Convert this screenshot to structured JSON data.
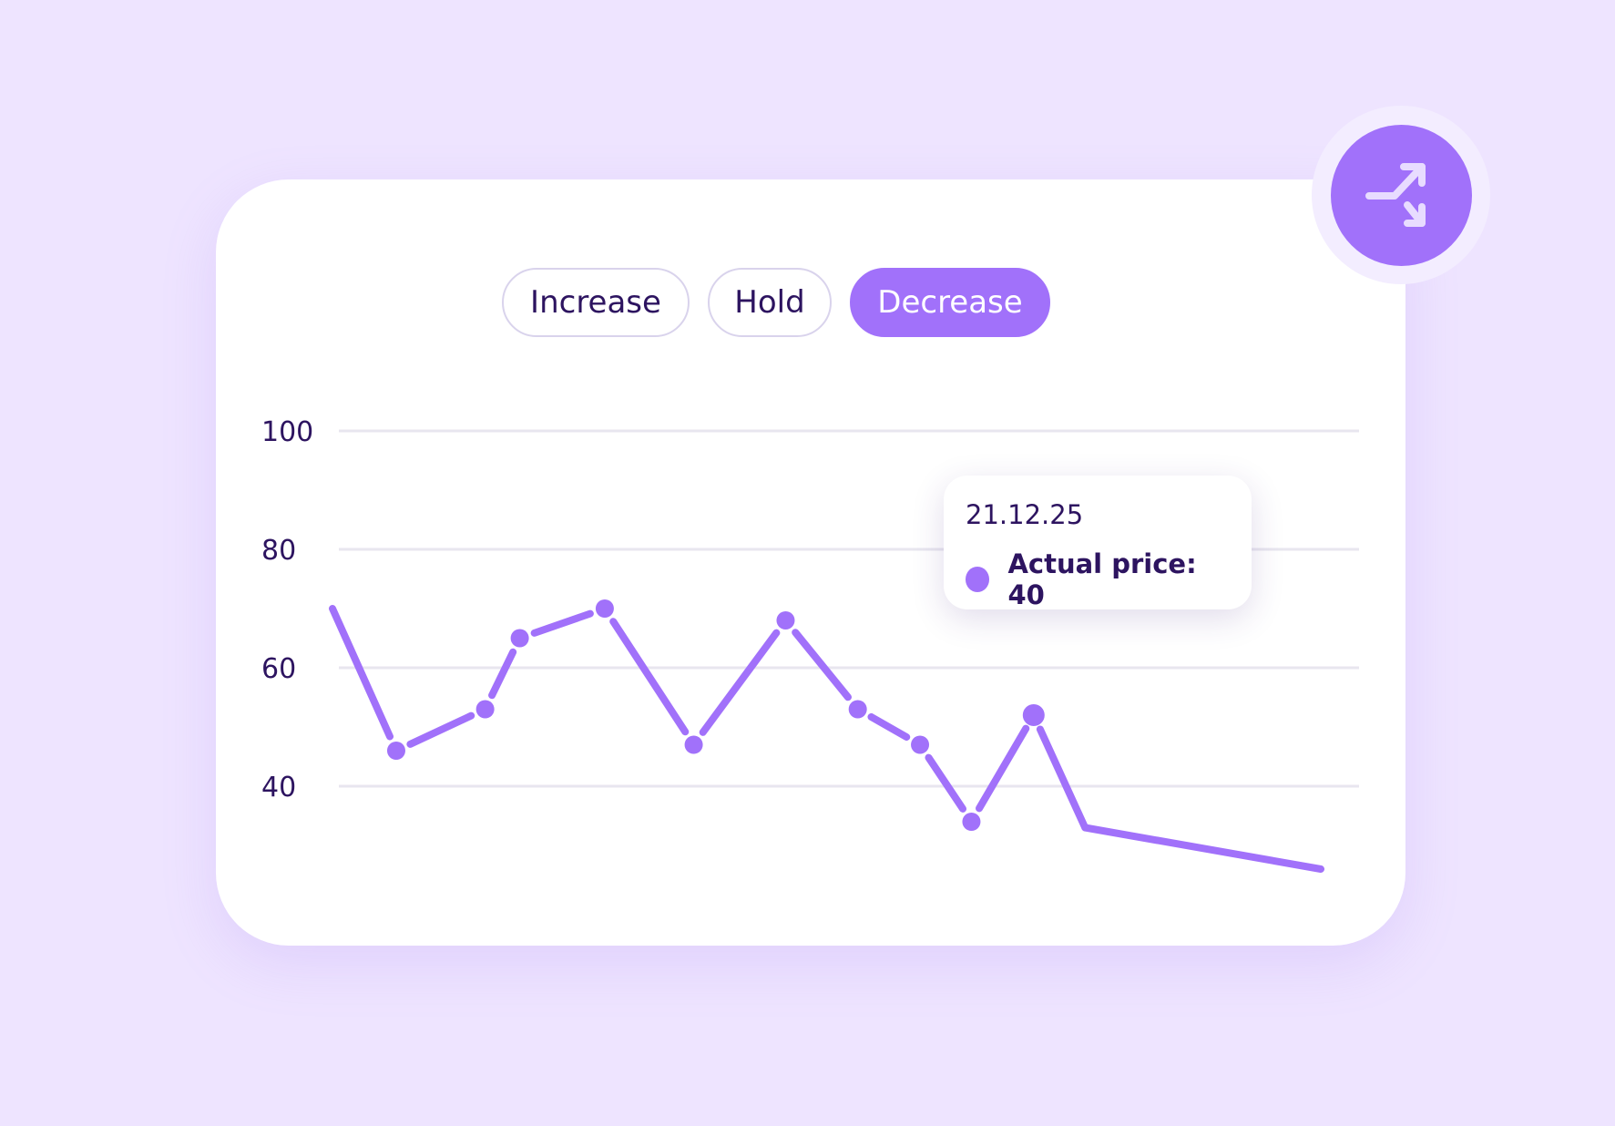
{
  "toggles": [
    {
      "label": "Increase",
      "active": false
    },
    {
      "label": "Hold",
      "active": false
    },
    {
      "label": "Decrease",
      "active": true
    }
  ],
  "fab": {
    "icon": "split-arrows-icon"
  },
  "tooltip": {
    "date": "21.12.25",
    "label": "Actual price: 40"
  },
  "colors": {
    "background": "#EEE4FF",
    "accent": "#A171FA",
    "text": "#2D1460",
    "grid": "#E8E6EF"
  },
  "chart_data": {
    "type": "line",
    "title": "",
    "xlabel": "",
    "ylabel": "",
    "ylim": [
      20,
      100
    ],
    "yticks": [
      40,
      60,
      80,
      100
    ],
    "grid": true,
    "series": [
      {
        "x": [
          0,
          1,
          2,
          3,
          4,
          5,
          6,
          7,
          8,
          9,
          10,
          11,
          12
        ],
        "values": [
          70,
          46,
          53,
          65,
          70,
          47,
          68,
          53,
          47,
          34,
          52,
          33,
          26
        ],
        "markers": [
          false,
          true,
          true,
          true,
          true,
          true,
          true,
          true,
          true,
          true,
          true,
          false,
          false
        ]
      }
    ]
  }
}
